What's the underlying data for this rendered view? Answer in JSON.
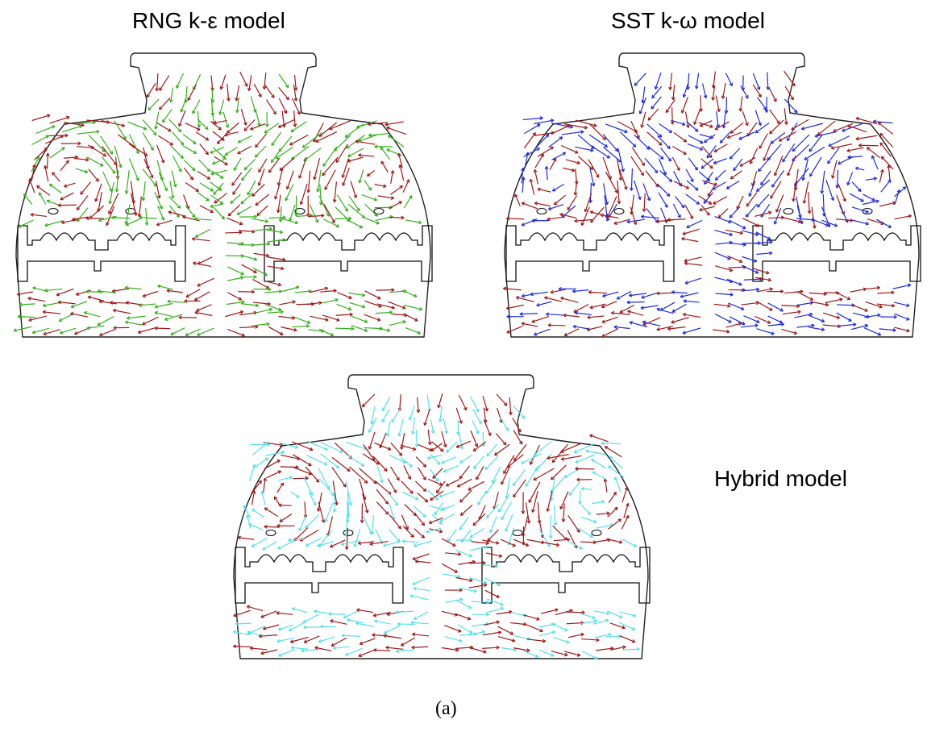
{
  "panels": [
    {
      "id": "rng",
      "title": "RNG k-ε model",
      "colors": {
        "primary": "#a01818",
        "secondary": "#34b01a"
      }
    },
    {
      "id": "sst",
      "title": "SST k-ω model",
      "colors": {
        "primary": "#a01818",
        "secondary": "#1f2ae0"
      }
    },
    {
      "id": "hyb",
      "title": "Hybrid model",
      "colors": {
        "primary": "#a01818",
        "secondary": "#55e0ea"
      }
    }
  ],
  "caption": "(a)"
}
